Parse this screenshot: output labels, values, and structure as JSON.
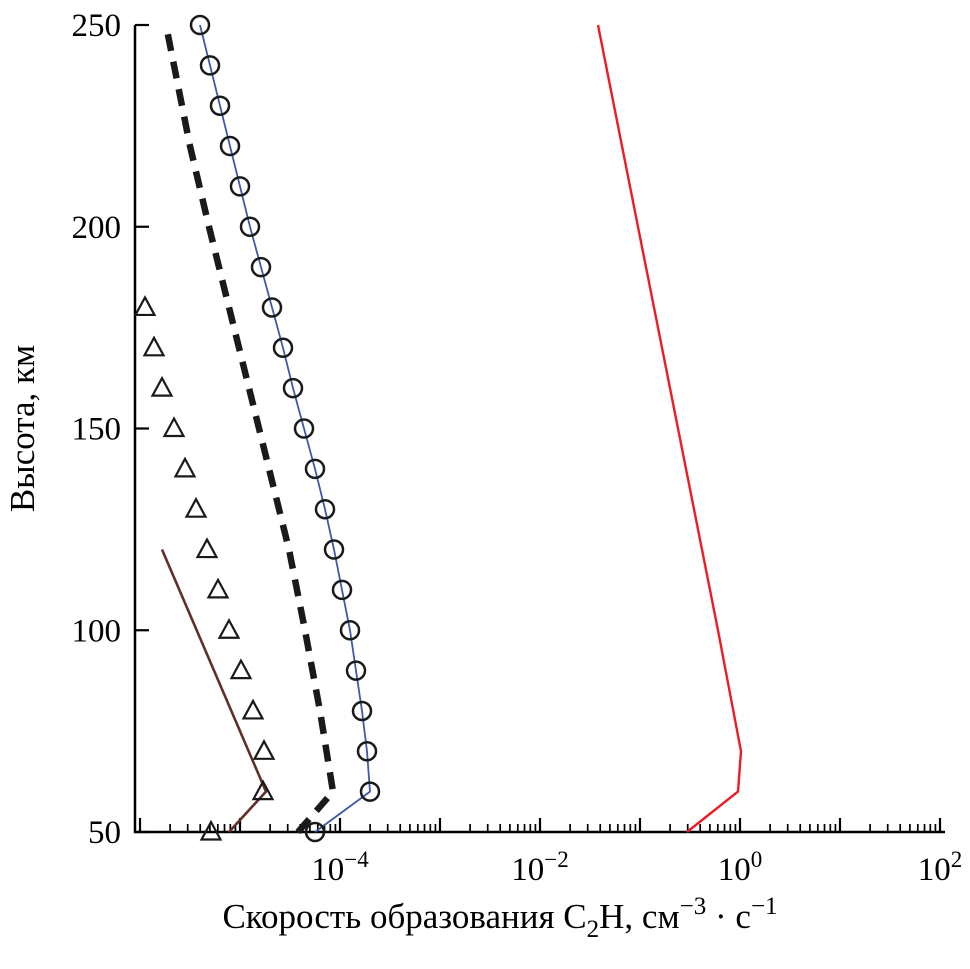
{
  "figure": {
    "background": "#ffffff",
    "axis_color": "#000000",
    "ylabel": "Высота, км",
    "xlabel_parts": [
      {
        "t": "Скорость образования C"
      },
      {
        "t": "2",
        "script": "sub"
      },
      {
        "t": "H, см"
      },
      {
        "t": "−3",
        "script": "sup"
      },
      {
        "t": " · с"
      },
      {
        "t": "−1",
        "script": "sup"
      }
    ],
    "x_tick_exponents": [
      -4,
      -2,
      0,
      2
    ],
    "y_ticks": [
      50,
      100,
      150,
      200,
      250
    ]
  },
  "chart_data": {
    "type": "line",
    "title": "",
    "xlabel": "Скорость образования C2H, см^-3 · с^-1",
    "ylabel": "Высота, км",
    "x_scale": "log10",
    "x_range_log10": [
      -6.05,
      2.05
    ],
    "y_range": [
      50,
      250
    ],
    "grid": false,
    "legend": "none",
    "note": "points are [altitude_km, log10(rate cm^-3 s^-1)]",
    "series": [
      {
        "name": "thick-dashed-black",
        "color": "#1a1a1a",
        "width": 6.5,
        "dash": "17 11",
        "marker": null,
        "points": [
          [
            50,
            -4.42
          ],
          [
            60,
            -4.07
          ],
          [
            80,
            -4.2
          ],
          [
            100,
            -4.35
          ],
          [
            120,
            -4.51
          ],
          [
            140,
            -4.71
          ],
          [
            160,
            -4.91
          ],
          [
            180,
            -5.11
          ],
          [
            200,
            -5.31
          ],
          [
            220,
            -5.5
          ],
          [
            240,
            -5.66
          ],
          [
            250,
            -5.74
          ]
        ]
      },
      {
        "name": "blue-line-open-circles",
        "color": "#4059a6",
        "width": 1.8,
        "dash": null,
        "marker": "circle",
        "marker_color": "#1a1a1a",
        "marker_size": 9,
        "points": [
          [
            50,
            -4.25
          ],
          [
            60,
            -3.7
          ],
          [
            70,
            -3.73
          ],
          [
            80,
            -3.78
          ],
          [
            90,
            -3.84
          ],
          [
            100,
            -3.9
          ],
          [
            110,
            -3.98
          ],
          [
            120,
            -4.06
          ],
          [
            130,
            -4.15
          ],
          [
            140,
            -4.25
          ],
          [
            150,
            -4.36
          ],
          [
            160,
            -4.47
          ],
          [
            170,
            -4.57
          ],
          [
            180,
            -4.68
          ],
          [
            190,
            -4.79
          ],
          [
            200,
            -4.9
          ],
          [
            210,
            -5.0
          ],
          [
            220,
            -5.1
          ],
          [
            230,
            -5.2
          ],
          [
            240,
            -5.3
          ],
          [
            250,
            -5.4
          ]
        ]
      },
      {
        "name": "brown-solid",
        "color": "#5f3028",
        "width": 2.6,
        "dash": null,
        "marker": null,
        "points": [
          [
            50,
            -5.11
          ],
          [
            60,
            -4.74
          ],
          [
            120,
            -5.78
          ]
        ]
      },
      {
        "name": "open-triangles",
        "color": "#1a1a1a",
        "width": 0,
        "line": false,
        "marker": "triangle",
        "marker_color": "#1a1a1a",
        "marker_size": 10,
        "points": [
          [
            50,
            -5.29
          ],
          [
            60,
            -4.77
          ],
          [
            70,
            -4.76
          ],
          [
            80,
            -4.87
          ],
          [
            90,
            -4.99
          ],
          [
            100,
            -5.11
          ],
          [
            110,
            -5.22
          ],
          [
            120,
            -5.33
          ],
          [
            130,
            -5.44
          ],
          [
            140,
            -5.55
          ],
          [
            150,
            -5.66
          ],
          [
            160,
            -5.78
          ],
          [
            170,
            -5.86
          ],
          [
            180,
            -5.95
          ]
        ]
      },
      {
        "name": "red-solid",
        "color": "#ed1c24",
        "width": 2.4,
        "dash": null,
        "marker": null,
        "points": [
          [
            50,
            -0.53
          ],
          [
            60,
            -0.02
          ],
          [
            70,
            0.01
          ],
          [
            100,
            -0.22
          ],
          [
            150,
            -0.62
          ],
          [
            200,
            -1.02
          ],
          [
            250,
            -1.42
          ]
        ]
      }
    ]
  }
}
